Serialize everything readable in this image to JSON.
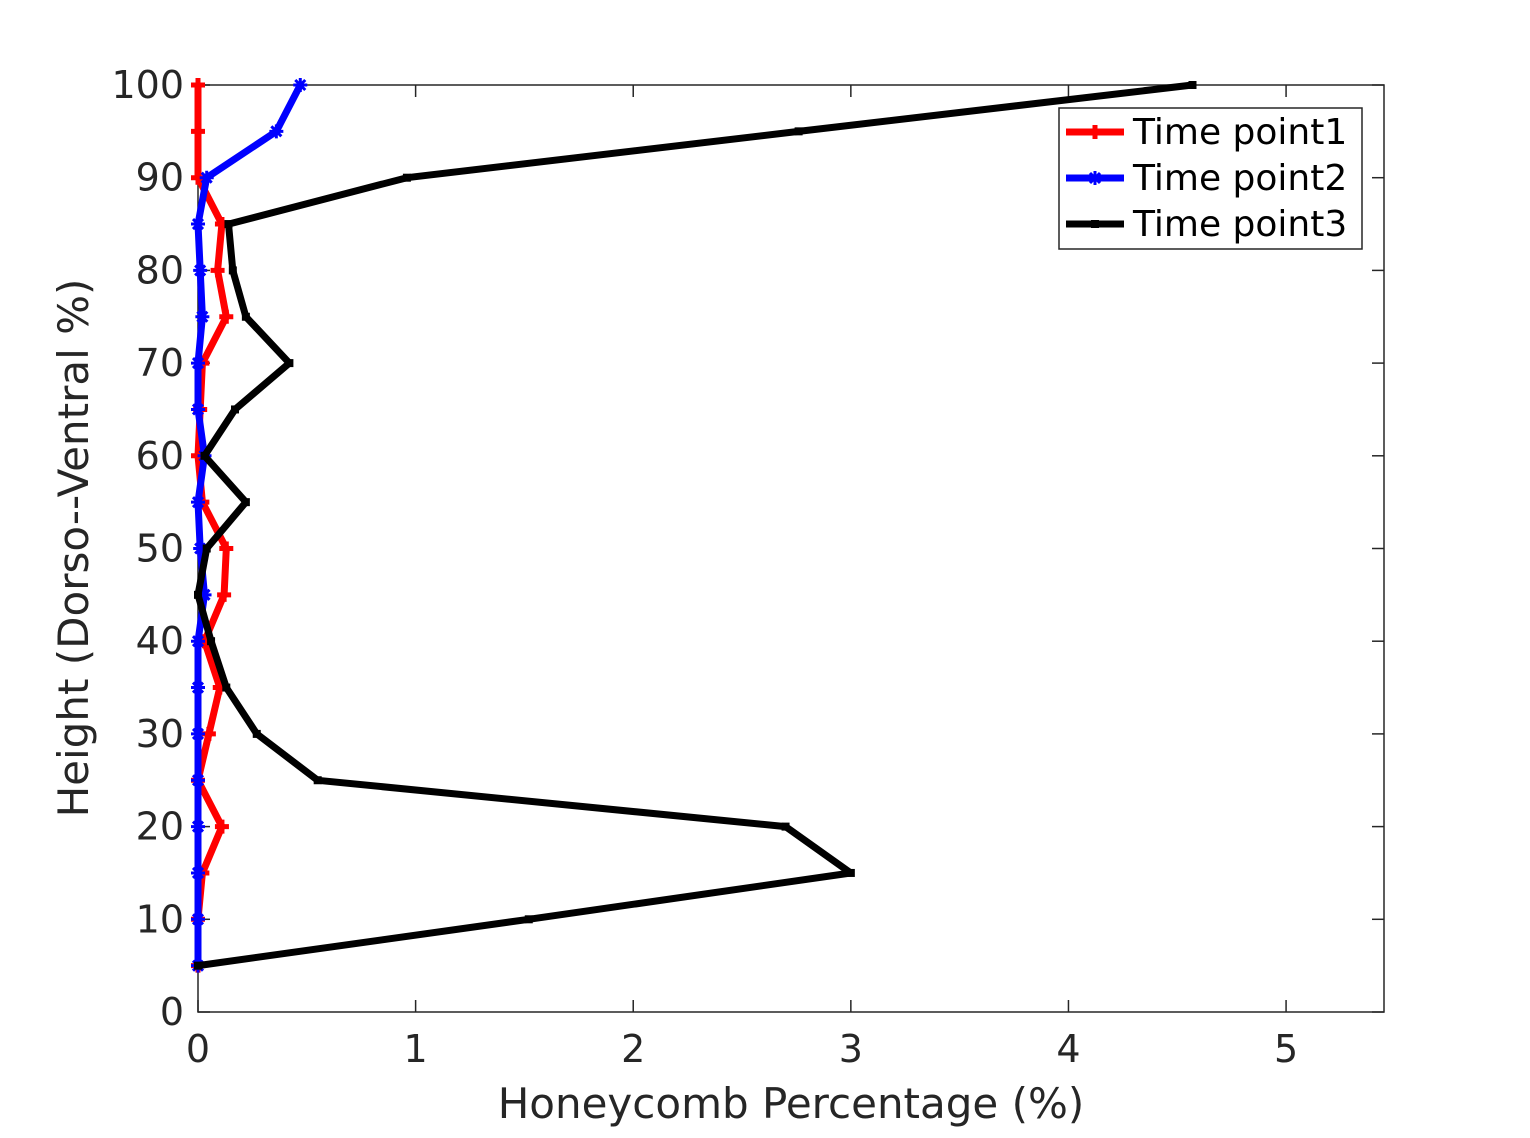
{
  "chart_data": {
    "type": "line",
    "title": "",
    "xlabel": "Honeycomb Percentage (%)",
    "ylabel": "Height (Dorso--Ventral %)",
    "xlim": [
      0,
      5.45
    ],
    "ylim": [
      0,
      100
    ],
    "x_ticks": [
      0,
      1,
      2,
      3,
      4,
      5
    ],
    "y_ticks": [
      0,
      10,
      20,
      30,
      40,
      50,
      60,
      70,
      80,
      90,
      100
    ],
    "grid": false,
    "legend_position": "top-right",
    "heights": [
      5,
      10,
      15,
      20,
      25,
      30,
      35,
      40,
      45,
      50,
      55,
      60,
      65,
      70,
      75,
      80,
      85,
      90,
      95,
      100
    ],
    "series": [
      {
        "name": "Time point1",
        "color": "#ff0000",
        "marker": "plus",
        "values": [
          0.0,
          0.0,
          0.02,
          0.11,
          0.0,
          0.05,
          0.1,
          0.03,
          0.12,
          0.13,
          0.02,
          0.0,
          0.01,
          0.02,
          0.13,
          0.09,
          0.11,
          0.0,
          0.0,
          0.0
        ]
      },
      {
        "name": "Time point2",
        "color": "#0000ff",
        "marker": "asterisk",
        "values": [
          0.0,
          0.0,
          0.0,
          0.0,
          0.0,
          0.0,
          0.0,
          0.0,
          0.03,
          0.01,
          0.0,
          0.03,
          0.0,
          0.0,
          0.02,
          0.01,
          0.0,
          0.04,
          0.36,
          0.47
        ]
      },
      {
        "name": "Time point3",
        "color": "#000000",
        "marker": "square",
        "values": [
          0.0,
          1.52,
          3.0,
          2.7,
          0.55,
          0.27,
          0.13,
          0.06,
          0.0,
          0.04,
          0.22,
          0.03,
          0.17,
          0.42,
          0.22,
          0.16,
          0.14,
          0.96,
          2.76,
          4.57
        ]
      }
    ]
  }
}
